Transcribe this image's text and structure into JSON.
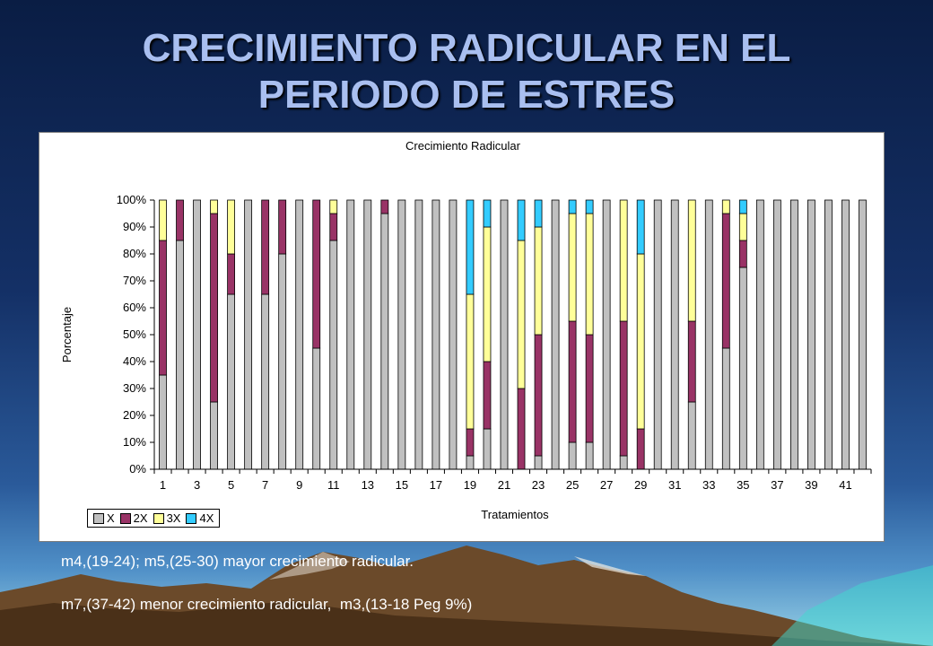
{
  "slide": {
    "title_line1": "CRECIMIENTO RADICULAR EN EL",
    "title_line2": "PERIODO DE ESTRES",
    "caption1": "m4,(19-24); m5,(25-30) mayor crecimiento radicular.",
    "caption2": "m7,(37-42) menor crecimiento radicular,  m3,(13-18 Peg 9%)"
  },
  "colors": {
    "X": "#c0c0c0",
    "2X": "#993366",
    "3X": "#ffff99",
    "4X": "#33ccff"
  },
  "chart_data": {
    "type": "bar",
    "stacked": true,
    "percent_stacked": true,
    "title": "Crecimiento Radicular",
    "xlabel": "Tratamientos",
    "ylabel": "Porcentaje",
    "ylim": [
      0,
      100
    ],
    "y_ticks": [
      "0%",
      "10%",
      "20%",
      "30%",
      "40%",
      "50%",
      "60%",
      "70%",
      "80%",
      "90%",
      "100%"
    ],
    "x_tick_labels": [
      "1",
      "3",
      "5",
      "7",
      "9",
      "11",
      "13",
      "15",
      "17",
      "19",
      "21",
      "23",
      "25",
      "27",
      "29",
      "31",
      "33",
      "35",
      "37",
      "39",
      "41"
    ],
    "categories": [
      "1",
      "2",
      "3",
      "4",
      "5",
      "6",
      "7",
      "8",
      "9",
      "10",
      "11",
      "12",
      "13",
      "14",
      "15",
      "16",
      "17",
      "18",
      "19",
      "20",
      "21",
      "22",
      "23",
      "24",
      "25",
      "26",
      "27",
      "28",
      "29",
      "30",
      "31",
      "32",
      "33",
      "34",
      "35",
      "36",
      "37",
      "38",
      "39",
      "40",
      "41",
      "42"
    ],
    "legend_position": "bottom-left",
    "grid": false,
    "series": [
      {
        "name": "X",
        "values": [
          35,
          85,
          100,
          25,
          65,
          100,
          65,
          80,
          100,
          45,
          85,
          100,
          100,
          95,
          100,
          100,
          100,
          100,
          5,
          15,
          100,
          0,
          5,
          100,
          10,
          10,
          100,
          5,
          0,
          100,
          100,
          25,
          100,
          45,
          75,
          100,
          100,
          100,
          100,
          100,
          100,
          100
        ]
      },
      {
        "name": "2X",
        "values": [
          50,
          15,
          0,
          70,
          15,
          0,
          35,
          20,
          0,
          55,
          10,
          0,
          0,
          5,
          0,
          0,
          0,
          0,
          10,
          25,
          0,
          30,
          45,
          0,
          45,
          40,
          0,
          50,
          15,
          0,
          0,
          30,
          0,
          50,
          10,
          0,
          0,
          0,
          0,
          0,
          0,
          0
        ]
      },
      {
        "name": "3X",
        "values": [
          15,
          0,
          0,
          5,
          20,
          0,
          0,
          0,
          0,
          0,
          5,
          0,
          0,
          0,
          0,
          0,
          0,
          0,
          50,
          50,
          0,
          55,
          40,
          0,
          40,
          45,
          0,
          45,
          65,
          0,
          0,
          45,
          0,
          5,
          10,
          0,
          0,
          0,
          0,
          0,
          0,
          0
        ]
      },
      {
        "name": "4X",
        "values": [
          0,
          0,
          0,
          0,
          0,
          0,
          0,
          0,
          0,
          0,
          0,
          0,
          0,
          0,
          0,
          0,
          0,
          0,
          35,
          10,
          0,
          15,
          10,
          0,
          5,
          5,
          0,
          0,
          20,
          0,
          0,
          0,
          0,
          0,
          5,
          0,
          0,
          0,
          0,
          0,
          0,
          0
        ]
      }
    ]
  }
}
